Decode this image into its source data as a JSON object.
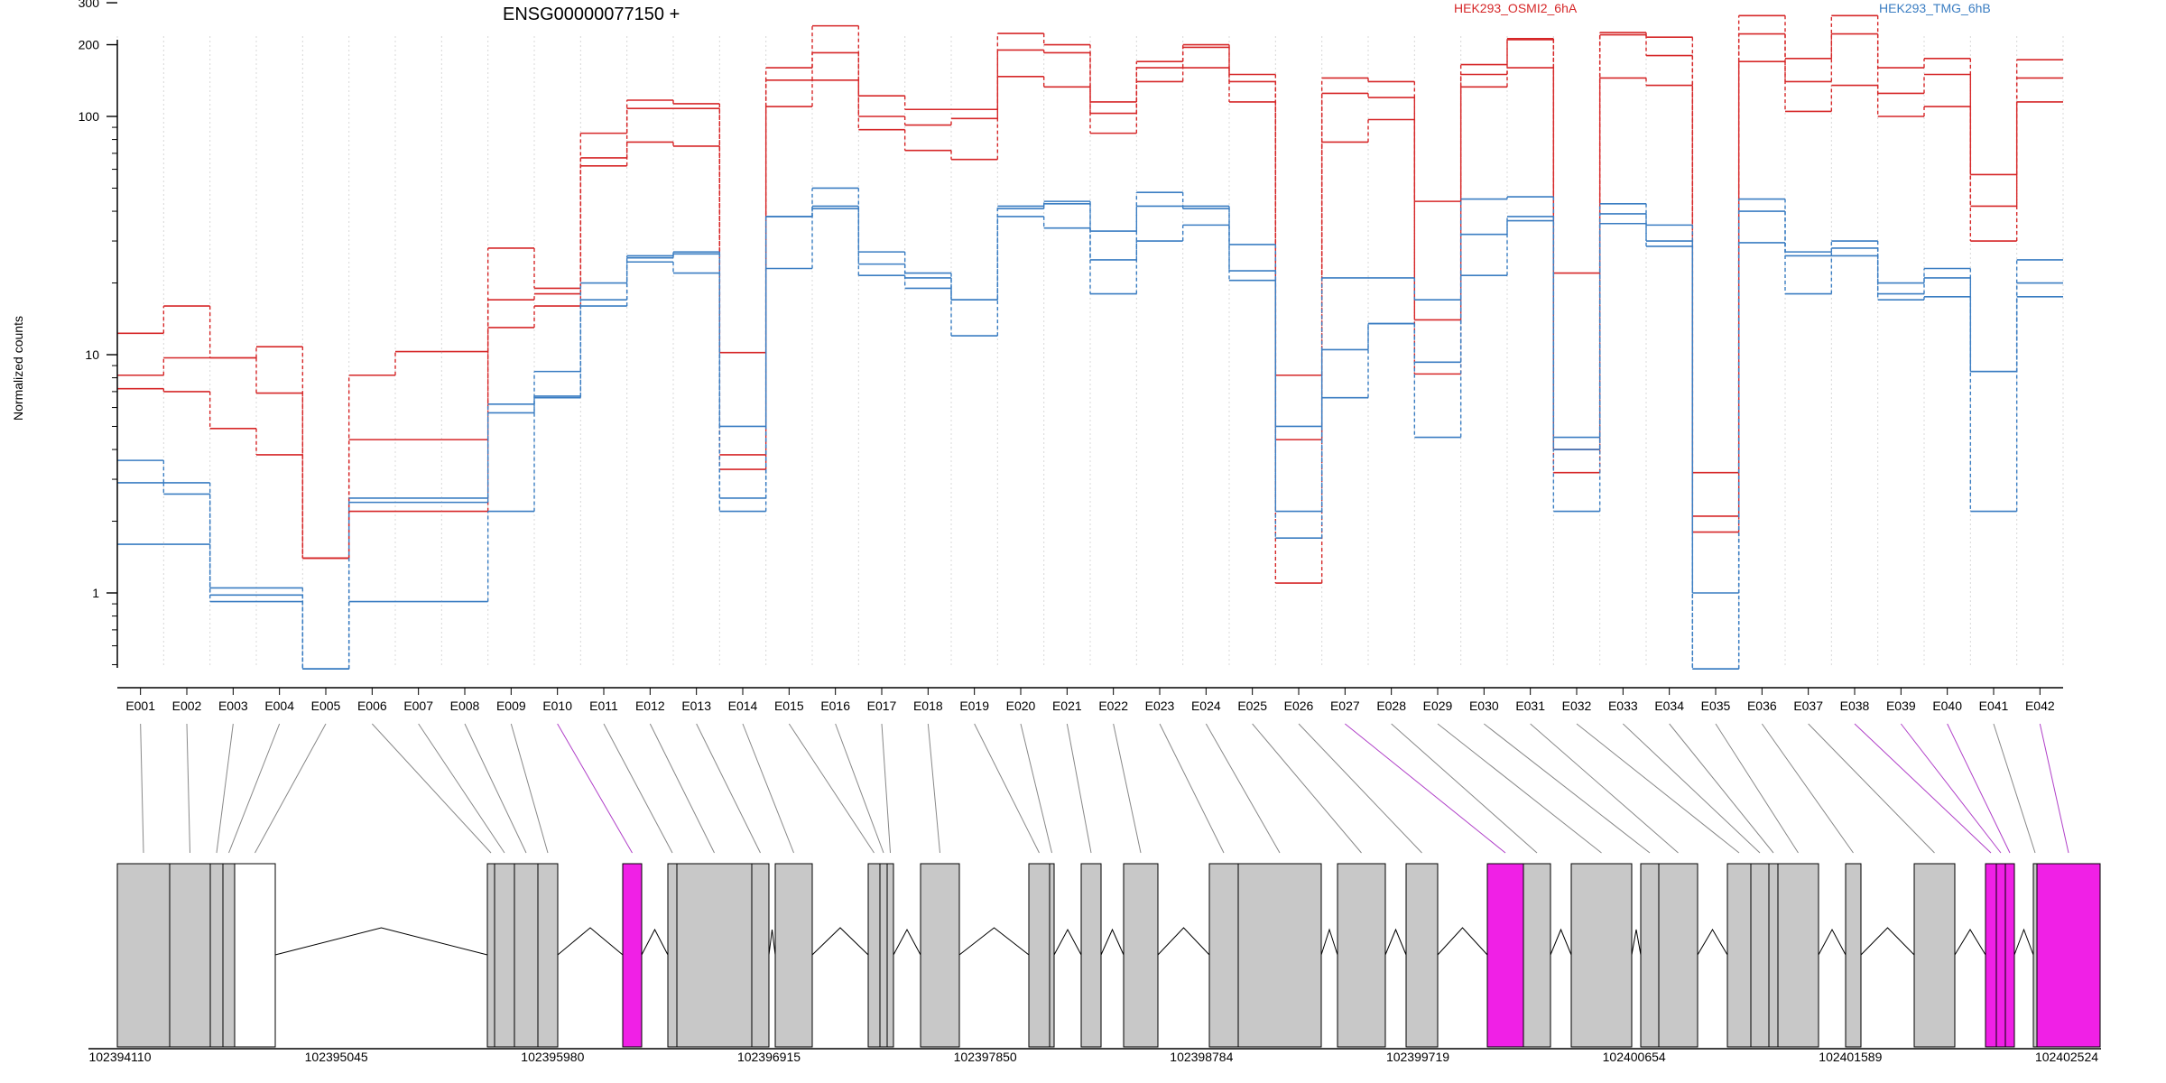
{
  "chart_data": {
    "type": "line",
    "title": "ENSG00000077150 +",
    "ylabel": "Normalized counts",
    "yscale": "log",
    "ylim": [
      0.45,
      350
    ],
    "yticks": [
      1,
      10,
      100,
      200,
      300
    ],
    "ytick_labels": [
      "1",
      "10",
      "100",
      "200",
      "300"
    ],
    "grid": "vertical dotted, one per exon bin",
    "categories": [
      "E001",
      "E002",
      "E003",
      "E004",
      "E005",
      "E006",
      "E007",
      "E008",
      "E009",
      "E010",
      "E011",
      "E012",
      "E013",
      "E014",
      "E015",
      "E016",
      "E017",
      "E018",
      "E019",
      "E020",
      "E021",
      "E022",
      "E023",
      "E024",
      "E025",
      "E026",
      "E027",
      "E028",
      "E029",
      "E030",
      "E031",
      "E032",
      "E033",
      "E034",
      "E035",
      "E036",
      "E037",
      "E038",
      "E039",
      "E040",
      "E041",
      "E042"
    ],
    "conditions": [
      {
        "name": "HEK293_OSMI2_6hA",
        "color": "#d62728"
      },
      {
        "name": "HEK293_TMG_6hB",
        "color": "#3a7dc2"
      }
    ],
    "series": [
      {
        "condition": 0,
        "values": [
          12.3,
          16,
          9.7,
          10.8,
          1.4,
          8.2,
          10.3,
          10.3,
          28,
          19,
          85,
          117,
          113,
          10.2,
          160,
          240,
          122,
          107,
          107,
          223,
          200,
          115,
          170,
          200,
          150,
          8.2,
          145,
          140,
          44,
          165,
          212,
          22,
          225,
          215,
          3.2,
          265,
          175,
          265,
          160,
          175,
          57,
          173
        ]
      },
      {
        "condition": 0,
        "values": [
          8.2,
          9.7,
          9.7,
          6.9,
          1.4,
          4.4,
          4.4,
          4.4,
          17,
          18,
          67,
          108,
          108,
          3.8,
          142,
          185,
          100,
          92,
          98,
          190,
          185,
          103,
          160,
          195,
          140,
          4.4,
          125,
          120,
          14,
          150,
          210,
          4,
          220,
          180,
          2.1,
          222,
          140,
          222,
          125,
          150,
          42,
          145
        ]
      },
      {
        "condition": 0,
        "values": [
          7.2,
          7,
          4.9,
          3.8,
          1.4,
          2.2,
          2.2,
          2.2,
          13,
          16,
          62,
          78,
          75,
          3.3,
          110,
          142,
          88,
          72,
          66,
          147,
          133,
          85,
          140,
          160,
          115,
          1.1,
          78,
          97,
          8.3,
          133,
          160,
          3.2,
          145,
          135,
          1.8,
          170,
          105,
          135,
          100,
          110,
          30,
          115
        ]
      },
      {
        "condition": 1,
        "values": [
          3.6,
          2.9,
          1.05,
          1.05,
          0.48,
          2.5,
          2.5,
          2.5,
          6.2,
          8.5,
          20,
          26,
          27,
          5,
          38,
          50,
          27,
          22,
          17,
          42,
          44,
          33,
          48,
          42,
          29,
          5,
          21,
          21,
          17,
          45,
          46,
          4.5,
          43,
          35,
          1,
          45,
          27,
          30,
          20,
          23,
          8.5,
          25
        ]
      },
      {
        "condition": 1,
        "values": [
          2.9,
          2.6,
          0.98,
          0.98,
          0.48,
          2.4,
          2.4,
          2.4,
          5.7,
          6.7,
          17,
          25.5,
          26.5,
          2.5,
          38,
          42,
          24,
          21,
          17,
          41,
          43,
          25,
          42,
          41,
          22.5,
          2.2,
          10.5,
          13.5,
          9.3,
          32,
          38,
          4,
          39,
          30,
          0.48,
          40,
          26,
          28,
          18,
          21,
          8.5,
          20
        ]
      },
      {
        "condition": 1,
        "values": [
          1.6,
          1.6,
          0.92,
          0.92,
          0.48,
          0.92,
          0.92,
          0.92,
          2.2,
          6.6,
          16,
          24.5,
          22,
          2.2,
          23,
          41,
          21.5,
          19,
          12,
          38,
          34,
          18,
          30,
          35,
          20.5,
          1.7,
          6.6,
          13.5,
          4.5,
          21.5,
          36.5,
          2.2,
          35.5,
          28.5,
          0.48,
          29.5,
          18,
          26,
          17,
          17.5,
          2.2,
          17.5
        ]
      }
    ],
    "gene_model": {
      "coordinate_labels": [
        "102394110",
        "102395045",
        "102395980",
        "102396915",
        "102397850",
        "102398784",
        "102399719",
        "102400654",
        "102401589",
        "102402524"
      ],
      "highlighted_bins": [
        "E010",
        "E027",
        "E038",
        "E039",
        "E040",
        "E042"
      ],
      "exon_color": "#c8c8c8",
      "highlight_color": "#f020e6"
    }
  }
}
